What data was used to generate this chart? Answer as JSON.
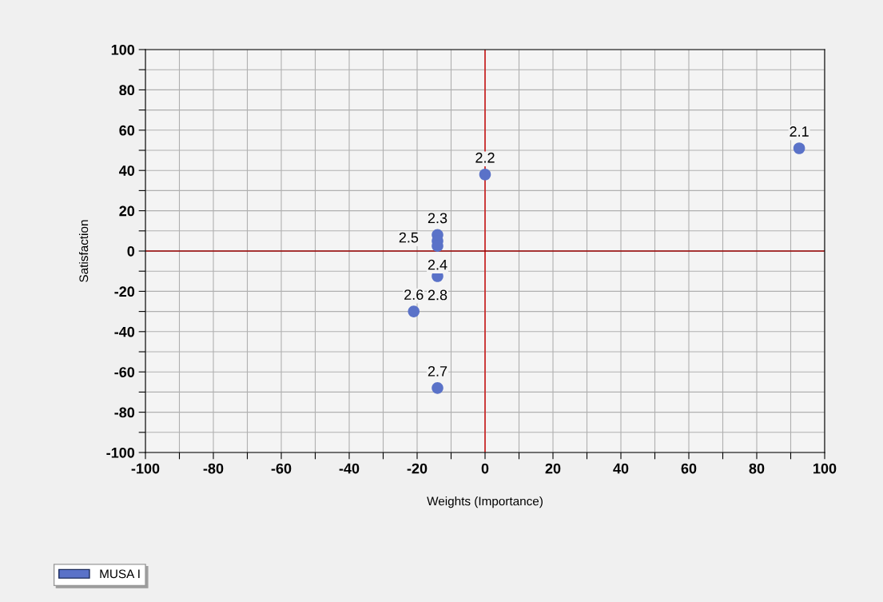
{
  "chart_data": {
    "type": "scatter",
    "xlabel": "Weights (Importance)",
    "ylabel": "Satisfaction",
    "series": [
      {
        "name": "MUSA I",
        "color": "#5a72c8",
        "x": [
          92.5,
          0,
          -14,
          -14,
          -14,
          -14,
          -21,
          -14
        ],
        "values": [
          51,
          38,
          8,
          5,
          2.5,
          -12.5,
          -30,
          -68
        ]
      }
    ],
    "annotations": [
      {
        "text": "2.1",
        "x": 92.5,
        "y": 51
      },
      {
        "text": "2.2",
        "x": 0,
        "y": 38
      },
      {
        "text": "2.3",
        "x": -14,
        "y": 8
      },
      {
        "text": "2.5",
        "x": -14,
        "y": 5
      },
      {
        "text": "2.4",
        "x": -14,
        "y": 2.5
      },
      {
        "text": "2.8",
        "x": -14,
        "y": -12.5
      },
      {
        "text": "2.6",
        "x": -21,
        "y": -30
      },
      {
        "text": "2.7",
        "x": -14,
        "y": -68
      }
    ],
    "xlim": [
      -100,
      100
    ],
    "ylim": [
      -100,
      100
    ],
    "xticks": [
      -100,
      {
        "value": -90,
        "label": null
      },
      -80,
      {
        "value": -70,
        "label": null
      },
      -60,
      {
        "value": -50,
        "label": null
      },
      -40,
      {
        "value": -30,
        "label": null
      },
      -20,
      {
        "value": -10,
        "label": null
      },
      0,
      {
        "value": 10,
        "label": null
      },
      20,
      {
        "value": 30,
        "label": null
      },
      40,
      {
        "value": 50,
        "label": null
      },
      60,
      {
        "value": 70,
        "label": null
      },
      80,
      {
        "value": 90,
        "label": null
      },
      100
    ],
    "yticks": [
      -100,
      {
        "value": -90,
        "label": null
      },
      -80,
      {
        "value": -70,
        "label": null
      },
      -60,
      {
        "value": -50,
        "label": null
      },
      -40,
      {
        "value": -30,
        "label": null
      },
      -20,
      {
        "value": -10,
        "label": null
      },
      0,
      {
        "value": 10,
        "label": null
      },
      20,
      {
        "value": 30,
        "label": null
      },
      40,
      {
        "value": 50,
        "label": null
      },
      60,
      {
        "value": 70,
        "label": null
      },
      80,
      {
        "value": 90,
        "label": null
      },
      100
    ],
    "ref_lines": [
      {
        "axis": "x",
        "value": 0,
        "color": "#cc2020"
      },
      {
        "axis": "y",
        "value": 0,
        "color": "#990000"
      }
    ],
    "grid": true,
    "legend": "bottom left",
    "marker": "circle"
  }
}
